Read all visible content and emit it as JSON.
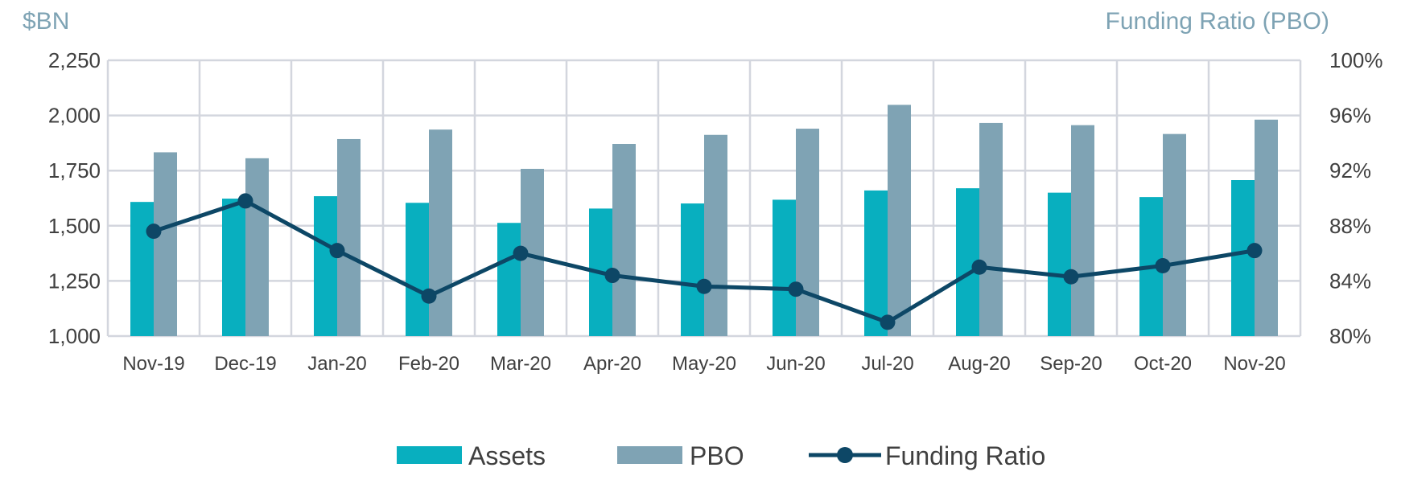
{
  "chart_data": {
    "type": "bar",
    "combo": "bar+line",
    "categories": [
      "Nov-19",
      "Dec-19",
      "Jan-20",
      "Feb-20",
      "Mar-20",
      "Apr-20",
      "May-20",
      "Jun-20",
      "Jul-20",
      "Aug-20",
      "Sep-20",
      "Oct-20",
      "Nov-20"
    ],
    "series": [
      {
        "name": "Assets",
        "type": "bar",
        "axis": "left",
        "color": "#08afbf",
        "values": [
          1608,
          1623,
          1634,
          1604,
          1513,
          1578,
          1601,
          1618,
          1660,
          1670,
          1650,
          1630,
          1707
        ]
      },
      {
        "name": "PBO",
        "type": "bar",
        "axis": "left",
        "color": "#7fa3b4",
        "values": [
          1833,
          1806,
          1893,
          1936,
          1758,
          1871,
          1912,
          1940,
          2048,
          1966,
          1956,
          1916,
          1981
        ]
      },
      {
        "name": "Funding Ratio",
        "type": "line",
        "axis": "right",
        "color": "#0d4766",
        "values": [
          87.6,
          89.8,
          86.2,
          82.9,
          86.0,
          84.4,
          83.6,
          83.4,
          81.0,
          85.0,
          84.3,
          85.1,
          86.2
        ]
      }
    ],
    "y_left": {
      "label": "$BN",
      "min": 1000,
      "max": 2250,
      "ticks": [
        1000,
        1250,
        1500,
        1750,
        2000,
        2250
      ],
      "tick_labels": [
        "1,000",
        "1,250",
        "1,500",
        "1,750",
        "2,000",
        "2,250"
      ]
    },
    "y_right": {
      "label": "Funding Ratio (PBO)",
      "min": 80,
      "max": 100,
      "ticks": [
        80,
        84,
        88,
        92,
        96,
        100
      ],
      "tick_labels": [
        "80%",
        "84%",
        "88%",
        "92%",
        "96%",
        "100%"
      ]
    },
    "grid": true,
    "legend_position": "bottom",
    "legend": [
      {
        "label": "Assets",
        "kind": "bar",
        "color": "#08afbf"
      },
      {
        "label": "PBO",
        "kind": "bar",
        "color": "#7fa3b4"
      },
      {
        "label": "Funding Ratio",
        "kind": "line",
        "color": "#0d4766"
      }
    ]
  }
}
